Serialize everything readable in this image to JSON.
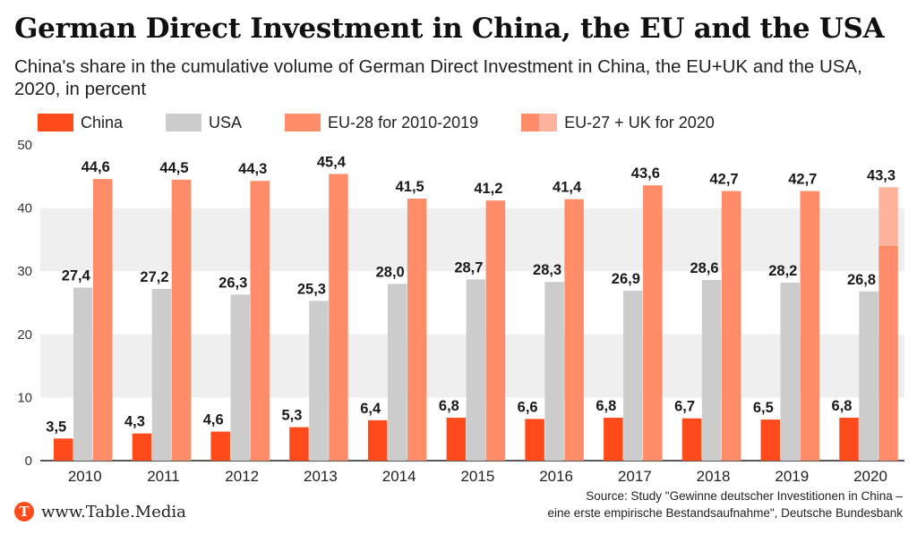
{
  "header": {
    "title": "German Direct Investment in China, the EU and the USA",
    "subtitle": "China's share in the cumulative volume of German Direct Investment in China, the EU+UK and the USA, 2020, in percent"
  },
  "legend": {
    "china": "China",
    "usa": "USA",
    "eu28": "EU-28 for 2010-2019",
    "eu27uk": "EU-27 + UK for 2020"
  },
  "colors": {
    "china": "#ff4a1c",
    "usa": "#cccccc",
    "eu": "#ff8c69",
    "eu_light": "#ffb39c",
    "band": "#efefef",
    "text": "#1a1a1a"
  },
  "chart_data": {
    "type": "bar",
    "title": "German Direct Investment in China, the EU and the USA",
    "xlabel": "",
    "ylabel": "",
    "ylim": [
      0,
      50
    ],
    "yticks": [
      0,
      10,
      20,
      30,
      40,
      50
    ],
    "categories": [
      "2010",
      "2011",
      "2012",
      "2013",
      "2014",
      "2015",
      "2016",
      "2017",
      "2018",
      "2019",
      "2020"
    ],
    "series": [
      {
        "name": "China",
        "values": [
          3.5,
          4.3,
          4.6,
          5.3,
          6.4,
          6.8,
          6.6,
          6.8,
          6.7,
          6.5,
          6.8
        ],
        "labels": [
          "3,5",
          "4,3",
          "4,6",
          "5,3",
          "6,4",
          "6,8",
          "6,6",
          "6,8",
          "6,7",
          "6,5",
          "6,8"
        ]
      },
      {
        "name": "USA",
        "values": [
          27.4,
          27.2,
          26.3,
          25.3,
          28.0,
          28.7,
          28.3,
          26.9,
          28.6,
          28.2,
          26.8
        ],
        "labels": [
          "27,4",
          "27,2",
          "26,3",
          "25,3",
          "28,0",
          "28,7",
          "28,3",
          "26,9",
          "28,6",
          "28,2",
          "26,8"
        ]
      },
      {
        "name": "EU-28 for 2010-2019",
        "values": [
          44.6,
          44.5,
          44.3,
          45.4,
          41.5,
          41.2,
          41.4,
          43.6,
          42.7,
          42.7,
          null
        ],
        "labels": [
          "44,6",
          "44,5",
          "44,3",
          "45,4",
          "41,5",
          "41,2",
          "41,4",
          "43,6",
          "42,7",
          "42,7",
          ""
        ]
      },
      {
        "name": "EU-27 + UK for 2020",
        "values": [
          null,
          null,
          null,
          null,
          null,
          null,
          null,
          null,
          null,
          null,
          43.3
        ],
        "labels": [
          "",
          "",
          "",
          "",
          "",
          "",
          "",
          "",
          "",
          "",
          "43,3"
        ],
        "eu27_portion": 34.0
      }
    ]
  },
  "footer": {
    "logo_letter": "T",
    "site": "www.Table.Media",
    "source_line1": "Source: Study \"Gewinne deutscher Investitionen in China –",
    "source_line2": "eine erste empirische Bestandsaufnahme\", Deutsche Bundesbank"
  }
}
